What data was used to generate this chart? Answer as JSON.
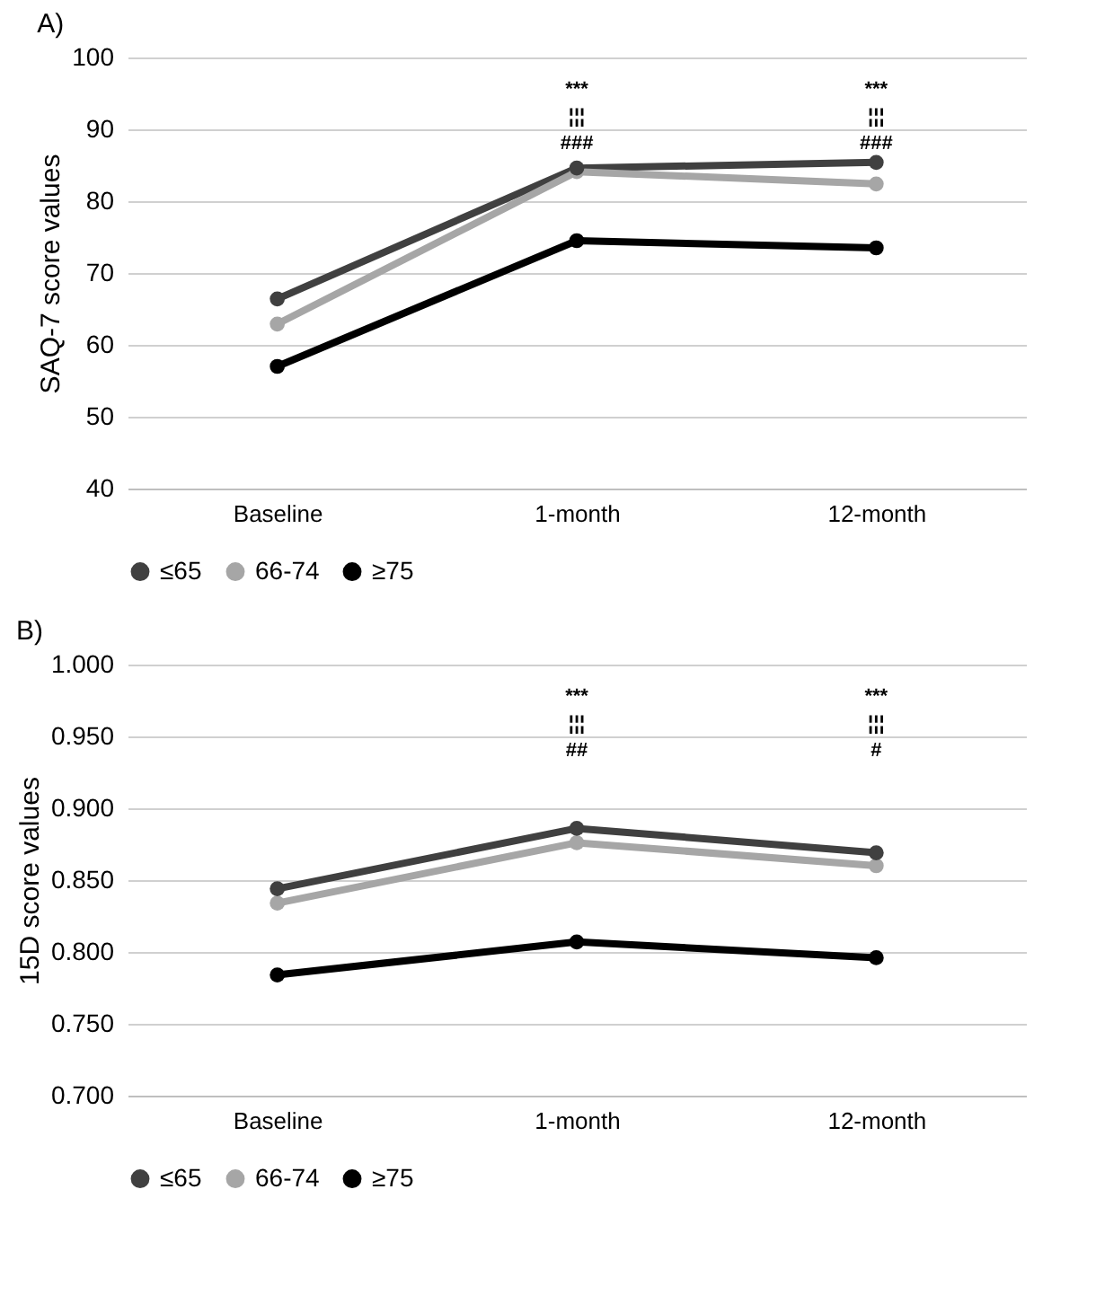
{
  "chart_data": [
    {
      "type": "line",
      "title": "A)",
      "ylabel": "SAQ-7 score values",
      "categories": [
        "Baseline",
        "1-month",
        "12-month"
      ],
      "series": [
        {
          "name": "≤65",
          "color": "#404040",
          "values": [
            66.4,
            84.6,
            85.4
          ]
        },
        {
          "name": "66-74",
          "color": "#a6a6a6",
          "values": [
            62.9,
            84.1,
            82.4
          ]
        },
        {
          "name": "≥75",
          "color": "#000000",
          "values": [
            57.0,
            74.5,
            73.5
          ]
        }
      ],
      "ylim": [
        40,
        100
      ],
      "yticks": [
        40,
        50,
        60,
        70,
        80,
        90,
        100
      ],
      "grid": "y",
      "legend": "bottom",
      "marker": "circle",
      "line_style": "solid",
      "annotations": [
        "***",
        "¦¦¦",
        "###",
        "***",
        "¦¦¦",
        "###"
      ]
    },
    {
      "type": "line",
      "title": "B)",
      "ylabel": "15D score values",
      "categories": [
        "Baseline",
        "1-month",
        "12-month"
      ],
      "series": [
        {
          "name": "≤65",
          "color": "#404040",
          "values": [
            0.844,
            0.886,
            0.869
          ]
        },
        {
          "name": "66-74",
          "color": "#a6a6a6",
          "values": [
            0.834,
            0.876,
            0.86
          ]
        },
        {
          "name": "≥75",
          "color": "#000000",
          "values": [
            0.784,
            0.807,
            0.796
          ]
        }
      ],
      "ylim": [
        0.7,
        1.0
      ],
      "yticks": [
        {
          "value": 0.7,
          "label": "0.700"
        },
        {
          "value": 0.75,
          "label": "0.750"
        },
        {
          "value": 0.8,
          "label": "0.800"
        },
        {
          "value": 0.85,
          "label": "0.850"
        },
        {
          "value": 0.9,
          "label": "0.900"
        },
        {
          "value": 0.95,
          "label": "0.950"
        },
        {
          "value": 1.0,
          "label": "1.000"
        }
      ],
      "grid": "y",
      "legend": "bottom",
      "marker": "circle",
      "line_style": "solid",
      "annotations": [
        "***",
        "¦¦¦",
        "##",
        "***",
        "¦¦¦",
        "#"
      ]
    }
  ]
}
